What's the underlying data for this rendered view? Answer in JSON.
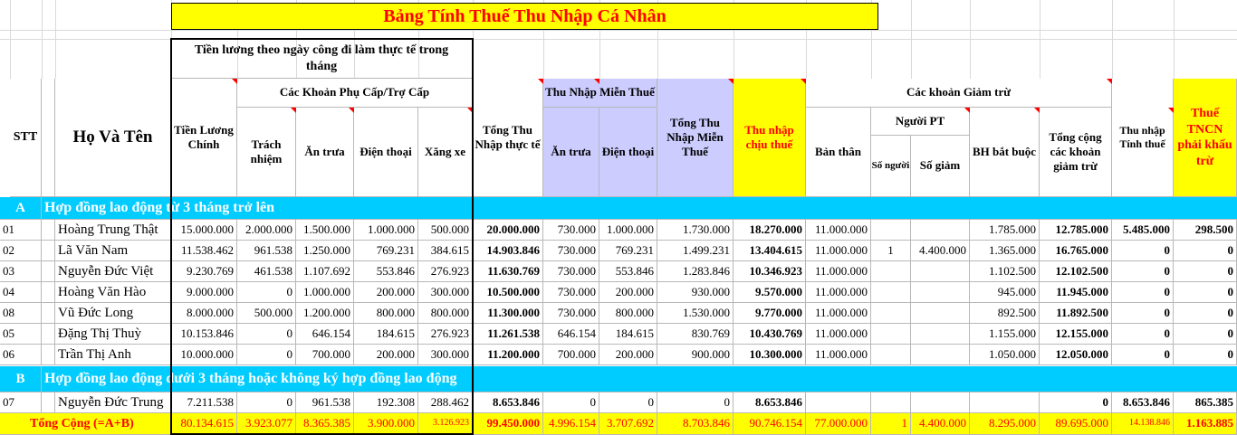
{
  "title": "Bảng Tính Thuế Thu Nhập Cá Nhân",
  "headers": {
    "group_salary": "Tiền lương theo ngày công đi làm thực tế trong tháng",
    "stt": "STT",
    "name": "Họ Và Tên",
    "base_salary": "Tiền Lương Chính",
    "allowances": "Các Khoản Phụ Cấp/Trợ Cấp",
    "responsibility": "Trách nhiệm",
    "lunch": "Ăn trưa",
    "phone": "Điện thoại",
    "fuel": "Xăng xe",
    "total_income": "Tổng Thu Nhập thực tế",
    "exempt_group": "Thu Nhập Miễn Thuế",
    "exempt_lunch": "Ăn trưa",
    "exempt_phone": "Điện thoại",
    "exempt_total": "Tổng Thu Nhập Miễn Thuế",
    "taxable_income": "Thu nhập chịu thuế",
    "deductions": "Các khoản Giảm trừ",
    "self": "Bản thân",
    "dependents": "Người PT",
    "dep_count": "Số người",
    "dep_amount": "Số giảm",
    "insurance": "BH bắt buộc",
    "total_deductions": "Tổng cộng các khoản giảm trừ",
    "assessable_income": "Thu nhập Tính thuế",
    "tax_payable": "Thuế TNCN phải khấu trừ"
  },
  "section_a": {
    "code": "A",
    "label": "Hợp đồng lao động từ 3 tháng trở lên"
  },
  "section_b": {
    "code": "B",
    "label": "Hợp đồng lao động dưới 3 tháng hoặc không ký hợp đồng lao động"
  },
  "rows_a": [
    [
      "01",
      "Hoàng Trung Thật",
      "15.000.000",
      "2.000.000",
      "1.500.000",
      "1.000.000",
      "500.000",
      "20.000.000",
      "730.000",
      "1.000.000",
      "1.730.000",
      "18.270.000",
      "11.000.000",
      "",
      "",
      "1.785.000",
      "12.785.000",
      "5.485.000",
      "298.500"
    ],
    [
      "02",
      "Lã Văn Nam",
      "11.538.462",
      "961.538",
      "1.250.000",
      "769.231",
      "384.615",
      "14.903.846",
      "730.000",
      "769.231",
      "1.499.231",
      "13.404.615",
      "11.000.000",
      "1",
      "4.400.000",
      "1.365.000",
      "16.765.000",
      "0",
      "0"
    ],
    [
      "03",
      "Nguyễn Đức Việt",
      "9.230.769",
      "461.538",
      "1.107.692",
      "553.846",
      "276.923",
      "11.630.769",
      "730.000",
      "553.846",
      "1.283.846",
      "10.346.923",
      "11.000.000",
      "",
      "",
      "1.102.500",
      "12.102.500",
      "0",
      "0"
    ],
    [
      "04",
      "Hoàng Văn Hào",
      "9.000.000",
      "0",
      "1.000.000",
      "200.000",
      "300.000",
      "10.500.000",
      "730.000",
      "200.000",
      "930.000",
      "9.570.000",
      "11.000.000",
      "",
      "",
      "945.000",
      "11.945.000",
      "0",
      "0"
    ],
    [
      "08",
      "Vũ Đức Long",
      "8.000.000",
      "500.000",
      "1.200.000",
      "800.000",
      "800.000",
      "11.300.000",
      "730.000",
      "800.000",
      "1.530.000",
      "9.770.000",
      "11.000.000",
      "",
      "",
      "892.500",
      "11.892.500",
      "0",
      "0"
    ],
    [
      "05",
      "Đặng Thị Thuỳ",
      "10.153.846",
      "0",
      "646.154",
      "184.615",
      "276.923",
      "11.261.538",
      "646.154",
      "184.615",
      "830.769",
      "10.430.769",
      "11.000.000",
      "",
      "",
      "1.155.000",
      "12.155.000",
      "0",
      "0"
    ],
    [
      "06",
      "Trần Thị Anh",
      "10.000.000",
      "0",
      "700.000",
      "200.000",
      "300.000",
      "11.200.000",
      "700.000",
      "200.000",
      "900.000",
      "10.300.000",
      "11.000.000",
      "",
      "",
      "1.050.000",
      "12.050.000",
      "0",
      "0"
    ]
  ],
  "rows_b": [
    [
      "07",
      "Nguyễn Đức Trung",
      "7.211.538",
      "0",
      "961.538",
      "192.308",
      "288.462",
      "8.653.846",
      "0",
      "0",
      "0",
      "8.653.846",
      "",
      "",
      "",
      "",
      "0",
      "8.653.846",
      "865.385"
    ]
  ],
  "total_row": [
    "Tổng Cộng (=A+B)",
    "80.134.615",
    "3.923.077",
    "8.365.385",
    "3.900.000",
    "3.126.923",
    "99.450.000",
    "4.996.154",
    "3.707.692",
    "8.703.846",
    "90.746.154",
    "77.000.000",
    "1",
    "4.400.000",
    "8.295.000",
    "89.695.000",
    "14.138.846",
    "1.163.885"
  ],
  "colors": {
    "title_bg": "#ffff00",
    "title_text": "#ff0000",
    "section_bg": "#00ccff",
    "exempt_bg": "#ccccff",
    "highlight_bg": "#ffff00"
  }
}
